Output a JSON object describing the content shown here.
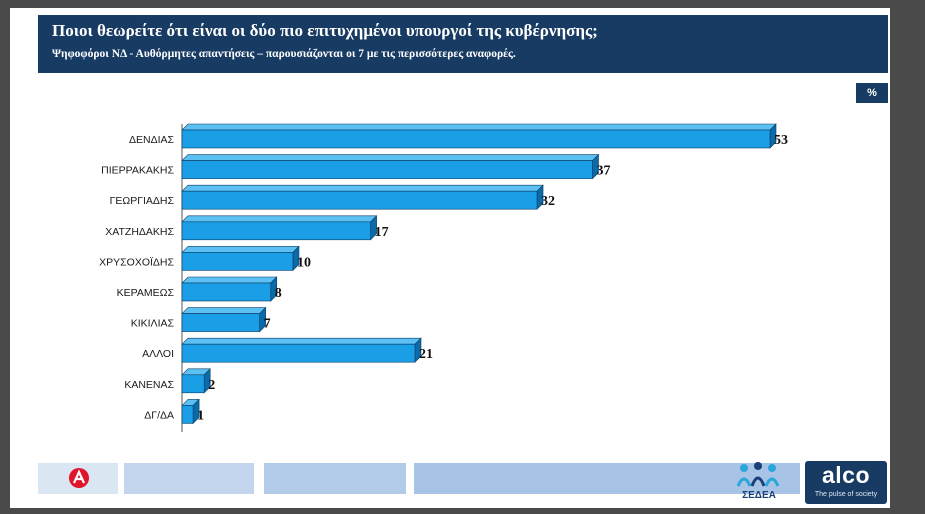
{
  "header": {
    "title": "Ποιοι θεωρείτε ότι είναι οι δύο πιο επιτυχημένοι υπουργοί της κυβέρνησης;",
    "subtitle": "Ψηφοφόροι ΝΔ - Αυθόρμητες απαντήσεις – παρουσιάζονται οι 7 με τις περισσότερες αναφορές."
  },
  "unit_badge": "%",
  "colors": {
    "header_bg": "#173b63",
    "bar_front": "#1a9ee6",
    "bar_top": "#5cc0f2",
    "bar_side": "#0b6aa8"
  },
  "chart_data": {
    "type": "bar",
    "orientation": "horizontal",
    "title": "Ποιοι θεωρείτε ότι είναι οι δύο πιο επιτυχημένοι υπουργοί της κυβέρνησης;",
    "subtitle": "Ψηφοφόροι ΝΔ - Αυθόρμητες απαντήσεις – παρουσιάζονται οι 7 με τις περισσότερες αναφορές.",
    "unit": "%",
    "categories": [
      "ΔΕΝΔΙΑΣ",
      "ΠΙΕΡΡΑΚΑΚΗΣ",
      "ΓΕΩΡΓΙΑΔΗΣ",
      "ΧΑΤΖΗΔΑΚΗΣ",
      "ΧΡΥΣΟΧΟΪΔΗΣ",
      "ΚΕΡΑΜΕΩΣ",
      "ΚΙΚΙΛΙΑΣ",
      "ΑΛΛΟΙ",
      "ΚΑΝΕΝΑΣ",
      "ΔΓ/ΔΑ"
    ],
    "values": [
      53,
      37,
      32,
      17,
      10,
      8,
      7,
      21,
      2,
      1
    ],
    "xlim": [
      0,
      53
    ],
    "grid": false,
    "legend": "none"
  },
  "logos": {
    "sedea_text": "ΣΕΔΕΑ",
    "alco_word": "alco",
    "alco_tagline": "The pulse of society"
  },
  "footer_colors": [
    "#dbe6f3",
    "#c3d6ee",
    "#b2cbe9",
    "#a7c3e6"
  ]
}
